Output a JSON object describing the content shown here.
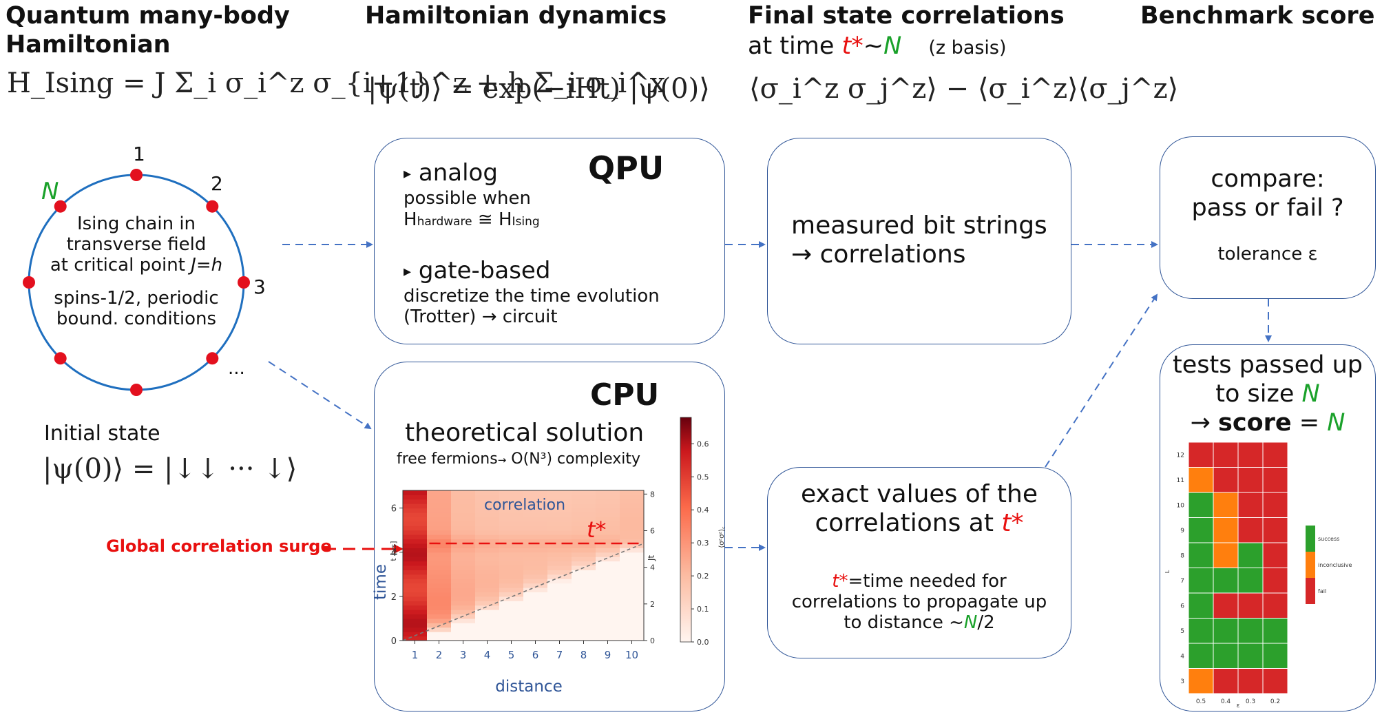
{
  "columns": {
    "col1_title_line1": "Quantum many-body",
    "col1_title_line2": "Hamiltonian",
    "col2_title": "Hamiltonian dynamics",
    "col3_title": "Final state correlations",
    "col3_sub_prefix": "at time ",
    "col3_sub_tstar": "t*",
    "col3_sub_tilde": "~",
    "col3_sub_N": "N",
    "col3_sub_basis": "(z basis)",
    "col4_title": "Benchmark score"
  },
  "equations": {
    "hamiltonian": "H_Ising = J Σ_i σ_i^z σ_{i+1}^z + h Σ_i σ_i^x",
    "evolution": "|ψ(t)⟩ = exp(−iHt) |ψ(0)⟩",
    "correlation": "⟨σ_i^z σ_j^z⟩ − ⟨σ_i^z⟩⟨σ_j^z⟩",
    "initial_state": "|ψ(0)⟩ = |↓↓ ··· ↓⟩"
  },
  "ring": {
    "label_N": "N",
    "label_1": "1",
    "label_2": "2",
    "label_3": "3",
    "label_dots": "...",
    "desc_line1": "Ising chain in",
    "desc_line2": "transverse field",
    "desc_line3_prefix": "at critical point ",
    "desc_line3_J": "J",
    "desc_line3_eq": "=",
    "desc_line3_h": "h",
    "desc_line4": "spins-1/2, periodic",
    "desc_line5": "bound. conditions",
    "initial_state_label": "Initial state"
  },
  "qpu": {
    "title": "QPU",
    "analog_bullet": "▸",
    "analog_label": "analog",
    "analog_line1": "possible when",
    "analog_H1": "H",
    "analog_sub1": "hardware",
    "analog_approx": " ≅ H",
    "analog_sub2": "Ising",
    "gate_bullet": "▸",
    "gate_label": "gate-based",
    "gate_line1": "discretize the time evolution",
    "gate_line2": "(Trotter) → circuit"
  },
  "cpu": {
    "title": "CPU",
    "subtitle": "theoretical solution",
    "note_prefix": "free fermions",
    "note_arrow": "→",
    "note_suffix": "  O(N³) complexity"
  },
  "measured": {
    "line1": "measured bit strings",
    "line2": "→  correlations"
  },
  "exact": {
    "line1": "exact values of the",
    "line2_prefix": "correlations at ",
    "line2_tstar": "t*",
    "def_tstar": "t*",
    "def_line1": "=time needed for",
    "def_line2": "correlations to propagate up",
    "def_line3_prefix": "to distance ~",
    "def_line3_N": "N",
    "def_line3_suffix": "/2"
  },
  "compare": {
    "line1": "compare:",
    "line2": "pass or fail ?",
    "tolerance": "tolerance ε"
  },
  "tests": {
    "line1": "tests passed up",
    "line2_prefix": "to size ",
    "line2_N": "N",
    "line3_arrow": "→ ",
    "line3_score": "score",
    "line3_eq": " = ",
    "line3_N": "N"
  },
  "annotation": {
    "surge": "Global correlation surge"
  },
  "colors": {
    "box_border": "#2f5597",
    "arrow": "#4472c4",
    "ring": "#1f6fbf",
    "dot": "#e3101e",
    "highlight_red": "#e8100f",
    "highlight_green": "#1aa12a",
    "success": "#2ca02c",
    "inconclusive": "#ff7f0e",
    "fail": "#d62728"
  },
  "chart_data": [
    {
      "type": "heatmap",
      "title": "",
      "xlabel": "distance",
      "ylabel": "time",
      "ylabel_unit": "t [μs]",
      "right_axis_label": "Jt",
      "colorbar_label": "⟨σᶻσᶻ⟩꜀",
      "overlay_label": "correlation",
      "marker_label": "t*",
      "x_ticks": [
        "1",
        "2",
        "3",
        "4",
        "5",
        "6",
        "7",
        "8",
        "9",
        "10"
      ],
      "y_ticks": [
        "0",
        "2",
        "4",
        "6"
      ],
      "right_ticks": [
        "0",
        "2",
        "4",
        "6",
        "8"
      ],
      "colorbar_ticks": [
        "0.0",
        "0.1",
        "0.2",
        "0.3",
        "0.4",
        "0.5",
        "0.6"
      ],
      "xlim": [
        0.5,
        10.5
      ],
      "ylim": [
        0,
        6.8
      ],
      "right_lim": [
        0,
        8.2
      ],
      "clim": [
        0,
        0.68
      ],
      "tstar": 4.4,
      "columns": [
        {
          "x": 1,
          "t0": 0.0,
          "peak": 0.6
        },
        {
          "x": 2,
          "t0": 0.35,
          "peak": 0.45
        },
        {
          "x": 3,
          "t0": 0.8,
          "peak": 0.34
        },
        {
          "x": 4,
          "t0": 1.3,
          "peak": 0.3
        },
        {
          "x": 5,
          "t0": 1.75,
          "peak": 0.28
        },
        {
          "x": 6,
          "t0": 2.2,
          "peak": 0.27
        },
        {
          "x": 7,
          "t0": 2.65,
          "peak": 0.26
        },
        {
          "x": 8,
          "t0": 3.1,
          "peak": 0.26
        },
        {
          "x": 9,
          "t0": 3.55,
          "peak": 0.26
        },
        {
          "x": 10,
          "t0": 4.0,
          "peak": 0.28
        }
      ]
    },
    {
      "type": "heatmap",
      "title": "",
      "xlabel": "ε",
      "ylabel": "L",
      "x_ticks": [
        "0.5",
        "0.4",
        "0.3",
        "0.2"
      ],
      "y_ticks": [
        "3",
        "4",
        "5",
        "6",
        "7",
        "8",
        "9",
        "10",
        "11",
        "12"
      ],
      "legend": [
        "success",
        "inconclusive",
        "fail"
      ],
      "legend_position": "right",
      "rows_bottom_to_top": [
        [
          "inconclusive",
          "fail",
          "fail",
          "fail"
        ],
        [
          "success",
          "success",
          "success",
          "success"
        ],
        [
          "success",
          "success",
          "success",
          "success"
        ],
        [
          "success",
          "fail",
          "fail",
          "fail"
        ],
        [
          "success",
          "success",
          "success",
          "fail"
        ],
        [
          "success",
          "inconclusive",
          "success",
          "fail"
        ],
        [
          "success",
          "inconclusive",
          "fail",
          "fail"
        ],
        [
          "success",
          "inconclusive",
          "fail",
          "fail"
        ],
        [
          "inconclusive",
          "fail",
          "fail",
          "fail"
        ],
        [
          "fail",
          "fail",
          "fail",
          "fail"
        ]
      ]
    }
  ]
}
